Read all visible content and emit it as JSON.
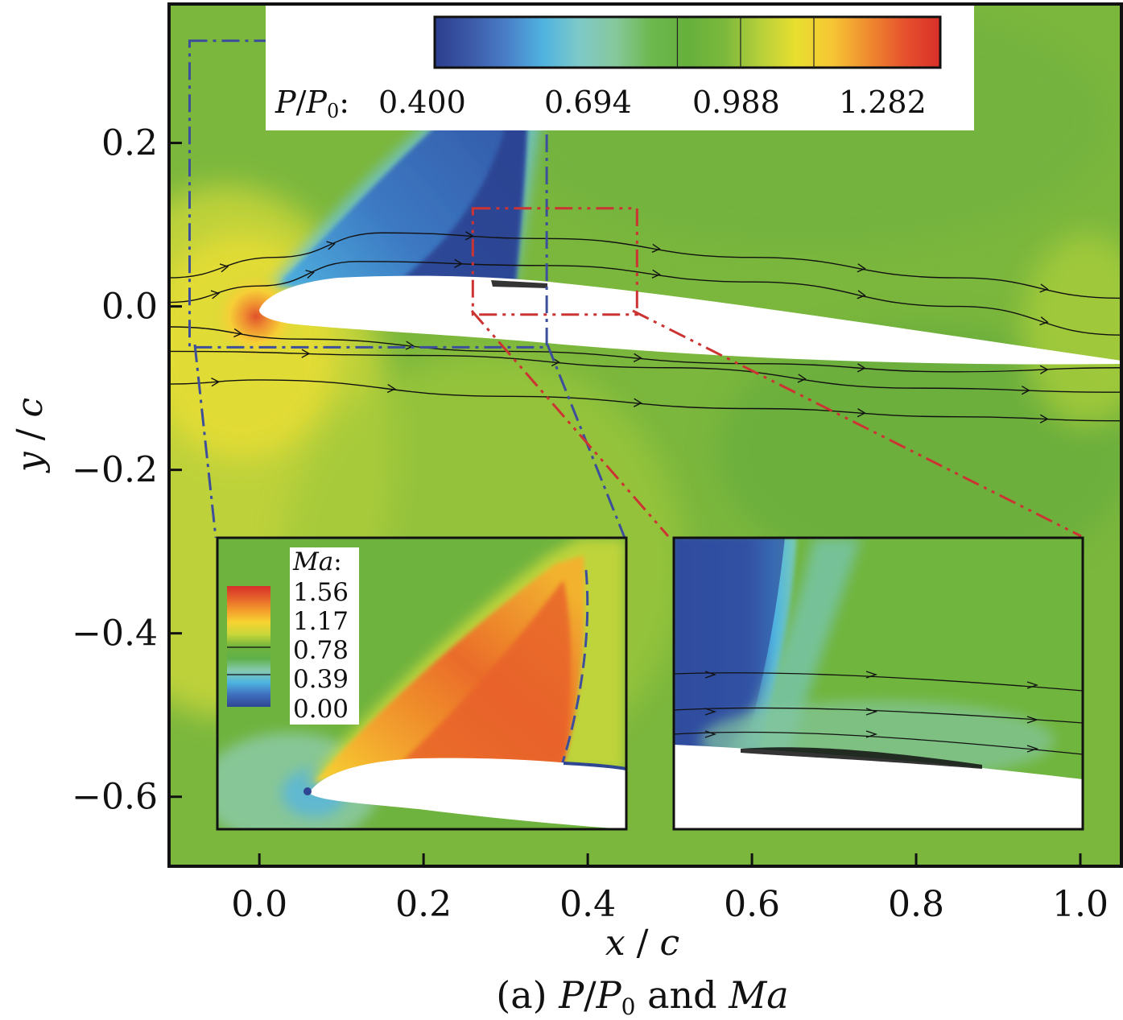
{
  "chart_data": {
    "type": "heatmap",
    "title": "",
    "caption": {
      "prefix": "(a) ",
      "var1": "P",
      "sep": "/",
      "var2": "P",
      "sub": "0",
      "mid": " and ",
      "var3": "Ma"
    },
    "xlabel": {
      "var": "x",
      "sep": " / ",
      "den": "c"
    },
    "ylabel": {
      "var": "y",
      "sep": " / ",
      "den": "c"
    },
    "xlim": [
      -0.11,
      1.05
    ],
    "ylim": [
      -0.685,
      0.37
    ],
    "xticks": [
      {
        "v": 0.0,
        "label": "0.0"
      },
      {
        "v": 0.2,
        "label": "0.2"
      },
      {
        "v": 0.4,
        "label": "0.4"
      },
      {
        "v": 0.6,
        "label": "0.6"
      },
      {
        "v": 0.8,
        "label": "0.8"
      },
      {
        "v": 1.0,
        "label": "1.0"
      }
    ],
    "yticks": [
      {
        "v": 0.2,
        "label": "0.2"
      },
      {
        "v": 0.0,
        "label": "0.0"
      },
      {
        "v": -0.2,
        "label": "−0.2"
      },
      {
        "v": -0.4,
        "label": "−0.4"
      },
      {
        "v": -0.6,
        "label": "−0.6"
      }
    ],
    "pressure_colorbar": {
      "var1": "P",
      "sep": "/",
      "var2": "P",
      "sub": "0",
      "colon": ":",
      "labels": [
        "0.400",
        "0.694",
        "0.988",
        "1.282"
      ],
      "colors": [
        "#2c3e8e",
        "#3c5aa8",
        "#4a7fc8",
        "#4fb3e0",
        "#7ec9c8",
        "#86c89c",
        "#6cb84e",
        "#66b03c",
        "#7ab83c",
        "#b5cf3a",
        "#e8df30",
        "#f6c634",
        "#ef8c2f",
        "#e6522d",
        "#d92f29"
      ]
    },
    "mach_colorbar": {
      "title_var": "Ma",
      "colon": ":",
      "labels": [
        "1.56",
        "1.17",
        "0.78",
        "0.39",
        "0.00"
      ],
      "colors": [
        "#d62f2a",
        "#e6622a",
        "#f39b2c",
        "#f6d432",
        "#c8d63a",
        "#70b43c",
        "#5fb04a",
        "#86c9b0",
        "#4db4e0",
        "#3f6fbd",
        "#2f4693"
      ]
    },
    "airfoil": {
      "leading_edge": [
        0.0,
        -0.01
      ],
      "trailing_edge": [
        1.05,
        -0.075
      ],
      "upper_max": 0.035,
      "lower_min": -0.07
    },
    "shock_x": 0.33,
    "regions": [
      {
        "name": "blue",
        "x": [
          -0.085,
          0.35
        ],
        "y": [
          -0.05,
          0.325
        ]
      },
      {
        "name": "red",
        "x": [
          0.26,
          0.46
        ],
        "y": [
          -0.01,
          0.12
        ]
      }
    ],
    "streamlines": [
      [
        [
          -0.11,
          0.035
        ],
        [
          0.02,
          0.06
        ],
        [
          0.15,
          0.09
        ],
        [
          0.35,
          0.083
        ],
        [
          0.6,
          0.06
        ],
        [
          0.85,
          0.035
        ],
        [
          1.05,
          0.01
        ]
      ],
      [
        [
          -0.11,
          0.005
        ],
        [
          0.0,
          0.025
        ],
        [
          0.12,
          0.055
        ],
        [
          0.35,
          0.05
        ],
        [
          0.6,
          0.03
        ],
        [
          0.85,
          0.0
        ],
        [
          1.05,
          -0.035
        ]
      ],
      [
        [
          -0.11,
          -0.025
        ],
        [
          0.05,
          -0.04
        ],
        [
          0.3,
          -0.055
        ],
        [
          0.6,
          -0.07
        ],
        [
          0.85,
          -0.08
        ],
        [
          1.05,
          -0.075
        ]
      ],
      [
        [
          -0.11,
          -0.055
        ],
        [
          0.2,
          -0.06
        ],
        [
          0.5,
          -0.075
        ],
        [
          0.8,
          -0.1
        ],
        [
          1.05,
          -0.105
        ]
      ],
      [
        [
          -0.11,
          -0.095
        ],
        [
          0.0,
          -0.09
        ],
        [
          0.3,
          -0.11
        ],
        [
          0.6,
          -0.125
        ],
        [
          0.85,
          -0.135
        ],
        [
          1.05,
          -0.14
        ]
      ]
    ]
  }
}
